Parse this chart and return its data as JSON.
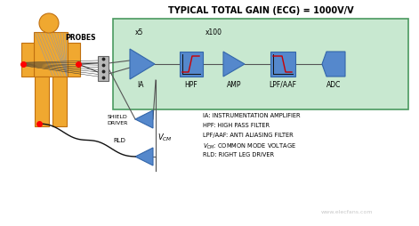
{
  "title": "TYPICAL TOTAL GAIN (ECG) = 1000V/V",
  "bg_color": "#ffffff",
  "diagram_bg": "#c8e8d0",
  "block_color": "#5588cc",
  "block_edge": "#3366aa",
  "line_color": "#555555",
  "red_line": "#cc0000",
  "body_color": "#f0a830",
  "body_outline": "#c07010",
  "gain_x5": "x5",
  "gain_x100": "x100",
  "labels_ia": "IA",
  "labels_hpf": "HPF",
  "labels_amp": "AMP",
  "labels_lpf": "LPF/AAF",
  "labels_adc": "ADC",
  "probes_label": "PROBES",
  "shield_label": "SHIELD\nDRIVER",
  "rld_label": "RLD",
  "vcm_label": "V",
  "legend_lines": [
    "IA: INSTRUMENTATION AMPLIFIER",
    "HPF: HIGH PASS FILTER",
    "LPF/AAF: ANTI ALIASING FILTER",
    "RLD: RIGHT LEG DRIVER"
  ]
}
